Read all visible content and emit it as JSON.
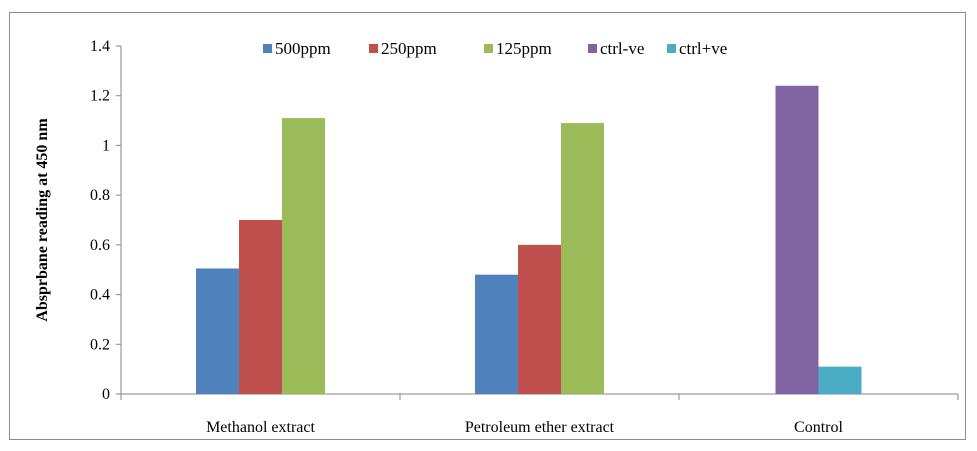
{
  "chart_data": {
    "type": "bar",
    "title": "",
    "xlabel": "",
    "ylabel": "Absprbane reading at 450 nm",
    "categories": [
      "Methanol extract",
      "Petroleum ether extract",
      "Control"
    ],
    "series": [
      {
        "name": "500ppm",
        "color": "#4f81bd",
        "values": [
          0.505,
          0.48,
          null
        ]
      },
      {
        "name": "250ppm",
        "color": "#c0504d",
        "values": [
          0.7,
          0.6,
          null
        ]
      },
      {
        "name": "125ppm",
        "color": "#9bbb59",
        "values": [
          1.11,
          1.09,
          null
        ]
      },
      {
        "name": "ctrl-ve",
        "color": "#8064a2",
        "values": [
          null,
          null,
          1.24
        ]
      },
      {
        "name": "ctrl+ve",
        "color": "#4bacc6",
        "values": [
          null,
          null,
          0.11
        ]
      }
    ],
    "ylim": [
      0,
      1.4
    ],
    "yticks": [
      "0",
      "0.2",
      "0.4",
      "0.6",
      "0.8",
      "1",
      "1.2",
      "1.4"
    ],
    "grid": false,
    "legend_position": "top"
  }
}
